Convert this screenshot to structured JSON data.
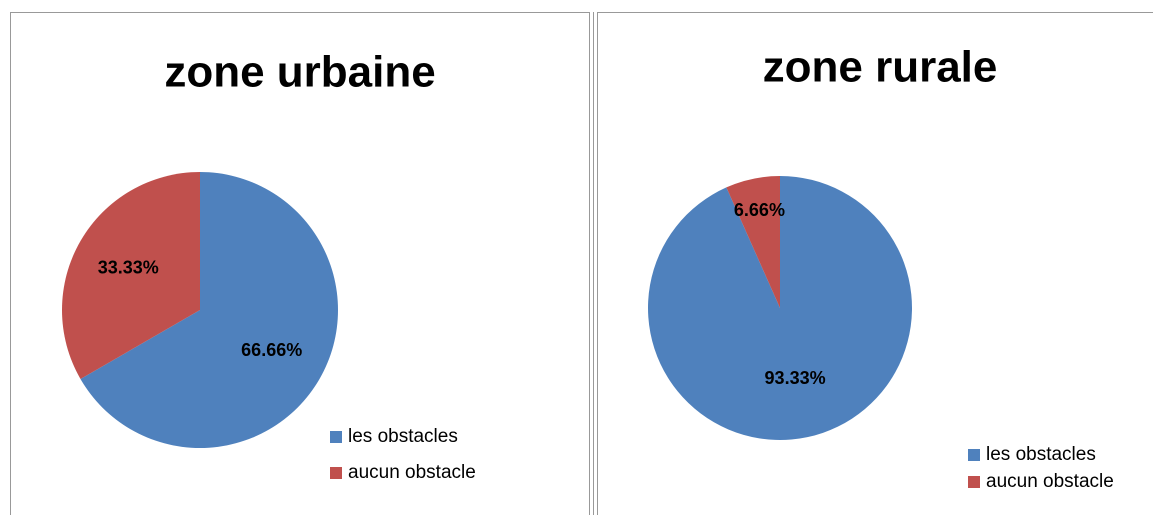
{
  "chart_data": [
    {
      "type": "pie",
      "title": "zone urbaine",
      "categories": [
        "les obstacles",
        "aucun obstacle"
      ],
      "values": [
        66.66,
        33.33
      ],
      "value_labels": [
        "66.66%",
        "33.33%"
      ],
      "colors": [
        "#4f81bd",
        "#c0504d"
      ]
    },
    {
      "type": "pie",
      "title": "zone rurale",
      "categories": [
        "les obstacles",
        "aucun obstacle"
      ],
      "values": [
        93.33,
        6.66
      ],
      "value_labels": [
        "93.33%",
        "6.66%"
      ],
      "colors": [
        "#4f81bd",
        "#c0504d"
      ]
    }
  ]
}
